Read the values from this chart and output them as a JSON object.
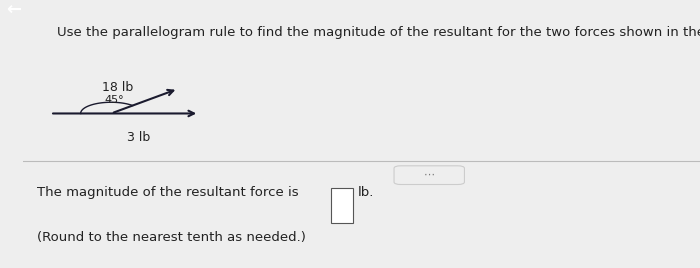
{
  "title": "Use the parallelogram rule to find the magnitude of the resultant for the two forces shown in the figure.",
  "title_fontsize": 9.5,
  "background_color": "#eeeeee",
  "top_bar_color": "#2277bb",
  "left_bar_color": "#c8b96a",
  "arrow1_label": "18 lb",
  "arrow2_label": "3 lb",
  "angle_label": "45°",
  "answer_text": "The magnitude of the resultant force is",
  "answer_text2": "(Round to the nearest tenth as needed.)",
  "answer_unit": "lb.",
  "divider_color": "#bbbbbb",
  "text_color": "#222222",
  "arrow_color": "#1a1a2e",
  "dots_color": "#777777",
  "dots_box_color": "#cccccc"
}
